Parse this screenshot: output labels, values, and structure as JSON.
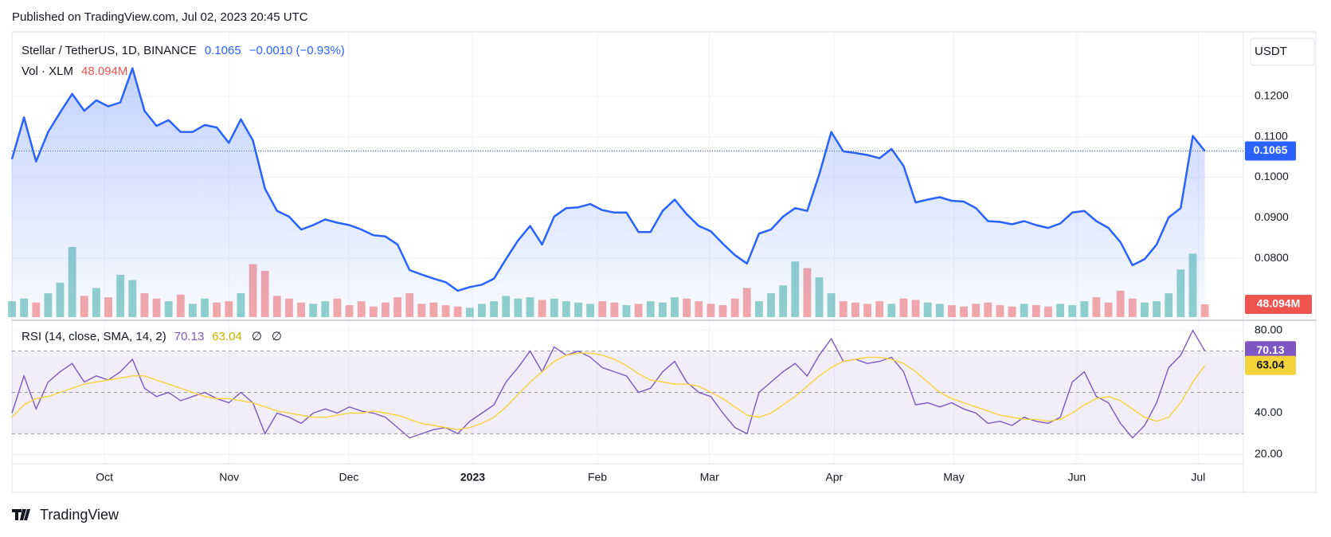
{
  "header": {
    "published": "Published on TradingView.com, Jul 02, 2023 20:45 UTC"
  },
  "footer": {
    "brand": "TradingView"
  },
  "chart_data": {
    "type": "line",
    "currency": "USDT",
    "xlim": [
      0,
      102.2
    ],
    "xticks": [
      {
        "value": 7.68,
        "label": "Oct"
      },
      {
        "value": 18.03,
        "label": "Nov"
      },
      {
        "value": 27.96,
        "label": "Dec"
      },
      {
        "value": 38.24,
        "label": "2023"
      },
      {
        "value": 48.59,
        "label": "Feb"
      },
      {
        "value": 57.89,
        "label": "Mar"
      },
      {
        "value": 68.24,
        "label": "Apr"
      },
      {
        "value": 78.17,
        "label": "May"
      },
      {
        "value": 88.38,
        "label": "Jun"
      },
      {
        "value": 98.45,
        "label": "Jul"
      }
    ],
    "ylim": [
      0.0651,
      0.1357
    ],
    "yticks": [
      {
        "value": 0.08,
        "label": "0.0800"
      },
      {
        "value": 0.09,
        "label": "0.0900"
      },
      {
        "value": 0.1,
        "label": "0.1000"
      },
      {
        "value": 0.11,
        "label": "0.1100"
      },
      {
        "value": 0.12,
        "label": "0.1200"
      }
    ],
    "grid": true,
    "series": [
      {
        "name": "Stellar / TetherUS, 1D, BINANCE",
        "color": "#2962ff",
        "last_label": "0.1065",
        "change": "−0.0010 (−0.93%)",
        "values": [
          0.1045,
          0.1148,
          0.1039,
          0.1112,
          0.116,
          0.1206,
          0.1164,
          0.119,
          0.1175,
          0.1185,
          0.1269,
          0.1164,
          0.1127,
          0.1141,
          0.1112,
          0.1112,
          0.1129,
          0.1123,
          0.1085,
          0.1143,
          0.1091,
          0.0972,
          0.0917,
          0.0903,
          0.0871,
          0.0882,
          0.0896,
          0.0888,
          0.0882,
          0.0871,
          0.0857,
          0.0854,
          0.0834,
          0.0771,
          0.076,
          0.075,
          0.0741,
          0.072,
          0.0729,
          0.0735,
          0.075,
          0.0798,
          0.0844,
          0.088,
          0.0834,
          0.0903,
          0.0924,
          0.0926,
          0.0934,
          0.0919,
          0.0913,
          0.0913,
          0.0865,
          0.0865,
          0.0917,
          0.0945,
          0.0909,
          0.088,
          0.0867,
          0.0836,
          0.0808,
          0.0787,
          0.0861,
          0.0871,
          0.0903,
          0.0924,
          0.0917,
          0.1007,
          0.1112,
          0.1064,
          0.106,
          0.1055,
          0.1047,
          0.107,
          0.1028,
          0.0938,
          0.0945,
          0.0951,
          0.0942,
          0.094,
          0.0924,
          0.0892,
          0.089,
          0.0884,
          0.0892,
          0.0882,
          0.0875,
          0.0886,
          0.0913,
          0.0917,
          0.0892,
          0.0875,
          0.084,
          0.0783,
          0.0798,
          0.0834,
          0.0901,
          0.0924,
          0.1102,
          0.1065
        ]
      }
    ],
    "volume": {
      "name": "Vol · XLM",
      "last_label": "48.094M",
      "up_color": "rgba(38,166,154,0.5)",
      "down_color": "rgba(239,83,80,0.5)",
      "values": [
        60,
        70,
        55,
        90,
        130,
        265,
        80,
        110,
        75,
        160,
        140,
        90,
        70,
        60,
        85,
        50,
        70,
        55,
        60,
        90,
        200,
        175,
        80,
        70,
        55,
        50,
        60,
        70,
        45,
        60,
        40,
        55,
        75,
        90,
        50,
        55,
        45,
        40,
        35,
        50,
        60,
        80,
        70,
        75,
        65,
        70,
        60,
        55,
        50,
        60,
        55,
        45,
        50,
        60,
        55,
        75,
        70,
        60,
        50,
        45,
        70,
        110,
        60,
        90,
        120,
        210,
        185,
        150,
        90,
        60,
        55,
        50,
        60,
        50,
        70,
        65,
        55,
        50,
        45,
        40,
        50,
        55,
        45,
        40,
        50,
        45,
        40,
        50,
        45,
        60,
        75,
        55,
        100,
        70,
        55,
        60,
        90,
        180,
        240,
        48.094
      ]
    },
    "rsi": {
      "title": "RSI (14, close, SMA, 14, 2)",
      "extras": [
        "∅",
        "∅"
      ],
      "ylim": [
        15.9,
        84.5
      ],
      "yticks": [
        {
          "value": 20,
          "label": "20.00"
        },
        {
          "value": 40,
          "label": "40.00"
        },
        {
          "value": 80,
          "label": "80.00"
        }
      ],
      "levels": [
        70,
        50,
        30
      ],
      "band_color": "rgba(126,87,194,0.1)",
      "series": [
        {
          "color": "#7e57c2",
          "last_label": "70.13",
          "values": [
            40,
            58,
            42,
            55,
            60,
            64,
            55,
            58,
            56,
            60,
            66,
            52,
            48,
            50,
            46,
            48,
            50,
            47,
            45,
            50,
            45,
            30,
            40,
            38,
            35,
            40,
            42,
            40,
            43,
            41,
            40,
            38,
            33,
            28,
            30,
            32,
            33,
            30,
            36,
            40,
            44,
            55,
            62,
            70,
            60,
            72,
            68,
            70,
            67,
            62,
            60,
            58,
            50,
            52,
            60,
            65,
            55,
            50,
            48,
            40,
            33,
            30,
            50,
            55,
            60,
            64,
            58,
            68,
            76,
            65,
            66,
            64,
            65,
            67,
            60,
            44,
            45,
            43,
            45,
            42,
            40,
            35,
            36,
            34,
            38,
            36,
            35,
            38,
            55,
            60,
            48,
            45,
            35,
            28,
            34,
            45,
            62,
            68,
            80,
            70.13
          ]
        },
        {
          "color": "#f5d33a",
          "last_label": "63.04",
          "values": [
            38,
            44,
            47,
            48,
            50,
            52,
            54,
            55,
            56,
            57,
            58,
            58,
            56,
            54,
            52,
            50,
            48,
            47,
            47,
            46,
            45,
            43,
            41,
            40,
            39,
            38,
            38,
            39,
            40,
            40,
            41,
            40,
            39,
            37,
            35,
            34,
            33,
            32,
            33,
            35,
            38,
            43,
            49,
            55,
            60,
            65,
            68,
            69,
            69,
            68,
            66,
            63,
            59,
            56,
            55,
            54,
            54,
            53,
            50,
            47,
            43,
            39,
            38,
            40,
            44,
            48,
            53,
            58,
            62,
            65,
            66,
            67,
            67,
            66,
            64,
            60,
            55,
            50,
            47,
            45,
            43,
            41,
            39,
            38,
            37,
            37,
            36,
            37,
            40,
            44,
            47,
            48,
            46,
            42,
            38,
            36,
            38,
            45,
            55,
            63.04
          ]
        }
      ]
    }
  }
}
